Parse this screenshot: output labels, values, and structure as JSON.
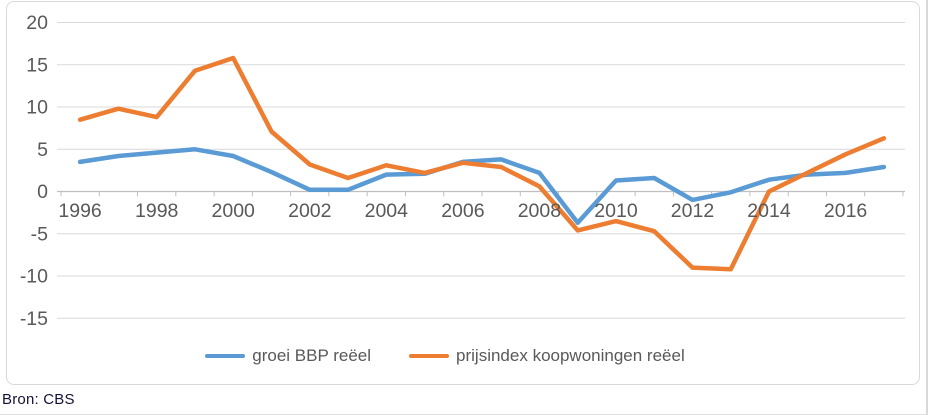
{
  "chart_data": {
    "type": "line",
    "title": "",
    "x": [
      1996,
      1997,
      1998,
      1999,
      2000,
      2001,
      2002,
      2003,
      2004,
      2005,
      2006,
      2007,
      2008,
      2009,
      2010,
      2011,
      2012,
      2013,
      2014,
      2015,
      2016,
      2017
    ],
    "series": [
      {
        "name": "groei BBP reëel",
        "color": "#5B9BD5",
        "values": [
          3.5,
          4.2,
          4.6,
          5.0,
          4.2,
          2.3,
          0.2,
          0.2,
          2.0,
          2.1,
          3.5,
          3.8,
          2.2,
          -3.7,
          1.3,
          1.6,
          -1.0,
          -0.1,
          1.4,
          2.0,
          2.2,
          2.9
        ]
      },
      {
        "name": "prijsindex koopwoningen reëel",
        "color": "#ED7D31",
        "values": [
          8.5,
          9.8,
          8.8,
          14.3,
          15.8,
          7.1,
          3.2,
          1.6,
          3.1,
          2.2,
          3.4,
          2.9,
          0.6,
          -4.6,
          -3.5,
          -4.7,
          -9.0,
          -9.2,
          0.0,
          2.2,
          4.4,
          6.3
        ]
      }
    ],
    "ylim": [
      -17.5,
      21.5
    ],
    "y_ticks": [
      20,
      15,
      10,
      5,
      0,
      -5,
      -10,
      -15
    ],
    "x_tick_labels": [
      "1996",
      "1998",
      "2000",
      "2002",
      "2004",
      "2006",
      "2008",
      "2010",
      "2012",
      "2014",
      "2016"
    ],
    "grid": true,
    "legend_position": "bottom",
    "axis_text_color": "#595959",
    "gridline_color": "#D9D9D9",
    "axis_line_color": "#BFBFBF"
  },
  "source": {
    "label": "Bron: CBS"
  }
}
